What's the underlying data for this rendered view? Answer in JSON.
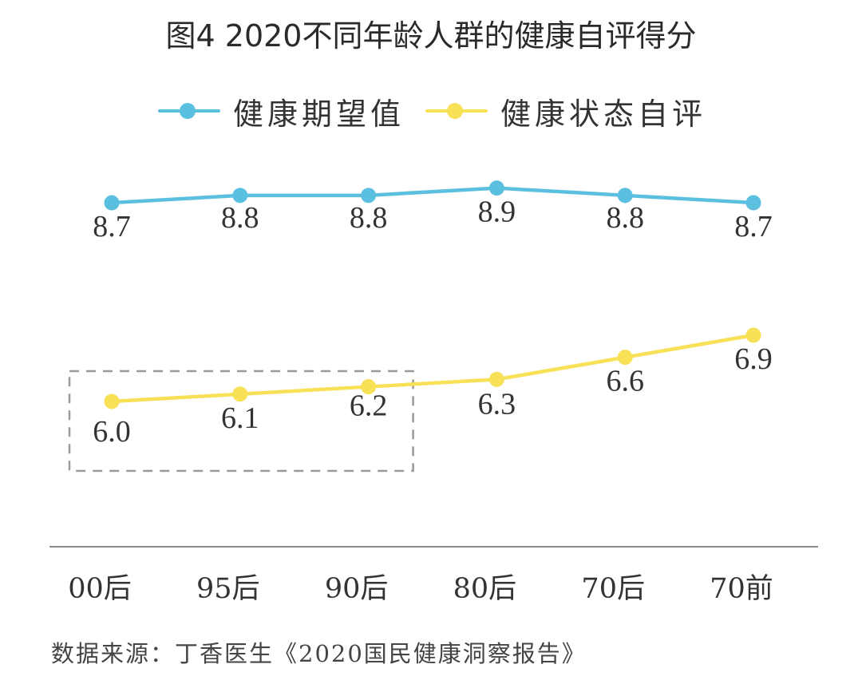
{
  "title": "图4  2020不同年龄人群的健康自评得分",
  "source": "数据来源：丁香医生《2020国民健康洞察报告》",
  "chart_data": {
    "type": "line",
    "title": "图4  2020不同年龄人群的健康自评得分",
    "categories": [
      "00后",
      "95后",
      "90后",
      "80后",
      "70后",
      "70前"
    ],
    "series": [
      {
        "name": "健康期望值",
        "color": "#5bbfe0",
        "values": [
          8.7,
          8.8,
          8.8,
          8.9,
          8.8,
          8.7
        ],
        "labels": [
          "8.7",
          "8.8",
          "8.8",
          "8.9",
          "8.8",
          "8.7"
        ]
      },
      {
        "name": "健康状态自评",
        "color": "#f8e157",
        "values": [
          6.0,
          6.1,
          6.2,
          6.3,
          6.6,
          6.9
        ],
        "labels": [
          "6.0",
          "6.1",
          "6.2",
          "6.3",
          "6.6",
          "6.9"
        ]
      }
    ],
    "highlight": {
      "categories": [
        "00后",
        "95后",
        "90后"
      ],
      "style": "dashed-box"
    },
    "y_axis_visible": false,
    "grid": false,
    "legend": "top"
  }
}
